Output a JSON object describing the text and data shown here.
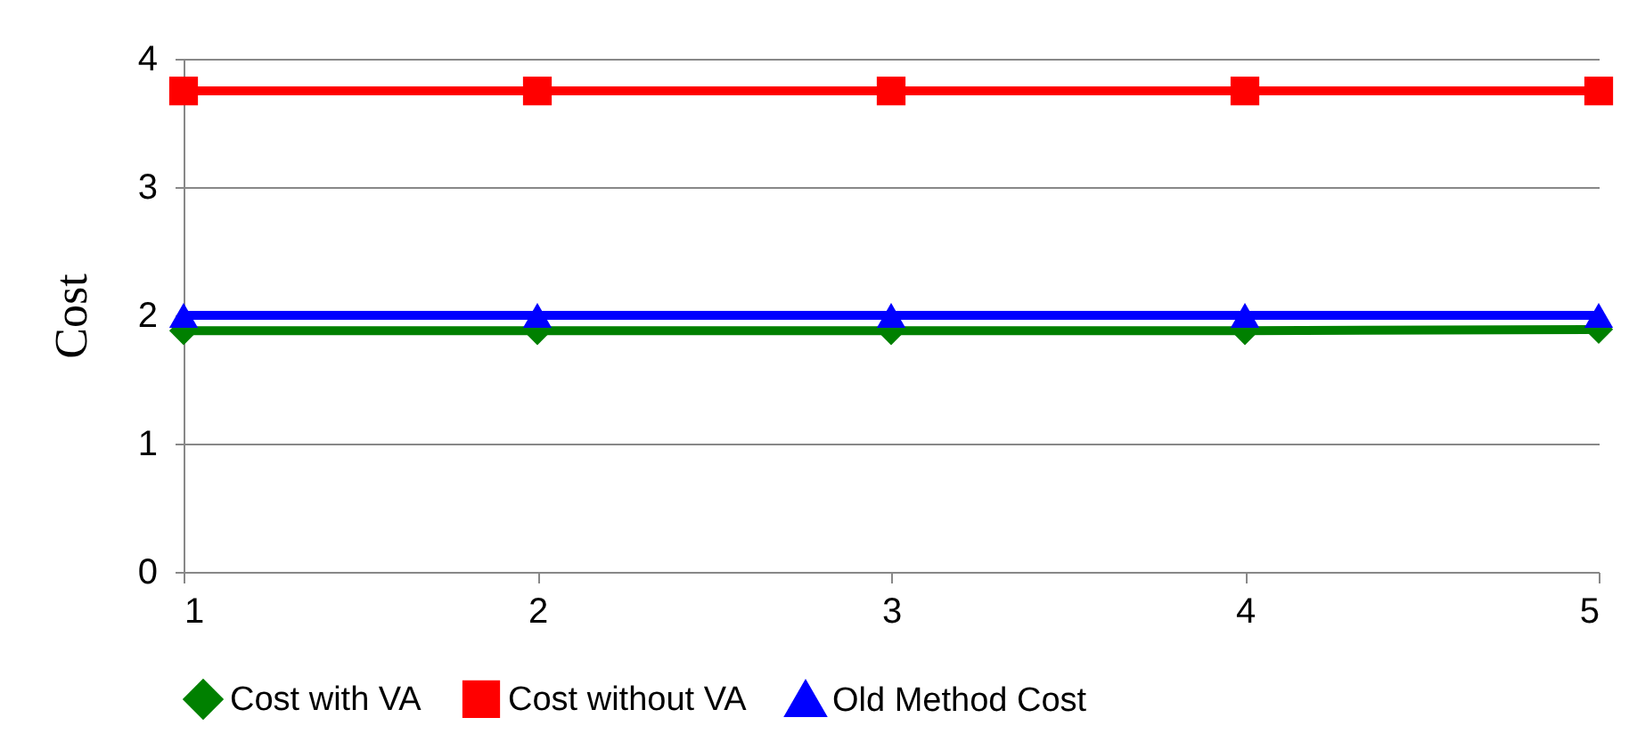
{
  "chart_data": {
    "type": "line",
    "ylabel": "Cost",
    "x": [
      1,
      2,
      3,
      4,
      5
    ],
    "xlim": [
      1,
      5
    ],
    "xticks": [
      1,
      2,
      3,
      4,
      5
    ],
    "ylim": [
      0,
      4
    ],
    "yticks": [
      0,
      1,
      2,
      3,
      4
    ],
    "grid": "y",
    "legend": "bottom",
    "line_style": "solid",
    "series": [
      {
        "name": "Cost with VA",
        "color": "#008000",
        "marker": "diamond",
        "values": [
          1.88,
          1.88,
          1.88,
          1.88,
          1.89
        ]
      },
      {
        "name": "Cost without VA",
        "color": "#ff0000",
        "marker": "square",
        "values": [
          3.75,
          3.75,
          3.75,
          3.75,
          3.75
        ]
      },
      {
        "name": "Old Method Cost",
        "color": "#0000ff",
        "marker": "triangle",
        "values": [
          2,
          2,
          2,
          2,
          2
        ]
      }
    ]
  }
}
